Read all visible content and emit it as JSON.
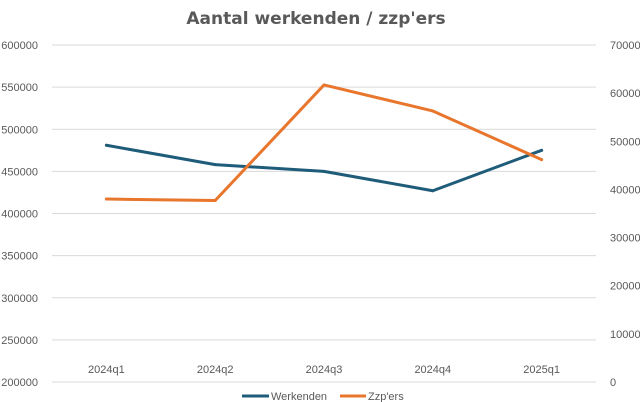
{
  "chart_data": {
    "type": "line",
    "title": "Aantal werkenden / zzp'ers",
    "categories": [
      "2024q1",
      "2024q2",
      "2024q3",
      "2024q4",
      "2025q1"
    ],
    "series": [
      {
        "name": "Werkenden",
        "axis": "left",
        "color": "#1f5c7a",
        "values": [
          481000,
          458000,
          450000,
          427000,
          475000
        ]
      },
      {
        "name": "Zzp'ers",
        "axis": "right",
        "color": "#e8762d",
        "values": [
          38000,
          37700,
          61700,
          56300,
          46200
        ]
      }
    ],
    "y_left": {
      "min": 200000,
      "max": 600000,
      "ticks": [
        "600000",
        "550000",
        "500000",
        "450000",
        "400000",
        "350000",
        "300000",
        "250000",
        "200000"
      ]
    },
    "y_right": {
      "min": 0,
      "max": 70000,
      "ticks": [
        "70000",
        "60000",
        "50000",
        "40000",
        "30000",
        "20000",
        "10000",
        "0"
      ]
    },
    "grid": true,
    "legend_position": "bottom"
  }
}
